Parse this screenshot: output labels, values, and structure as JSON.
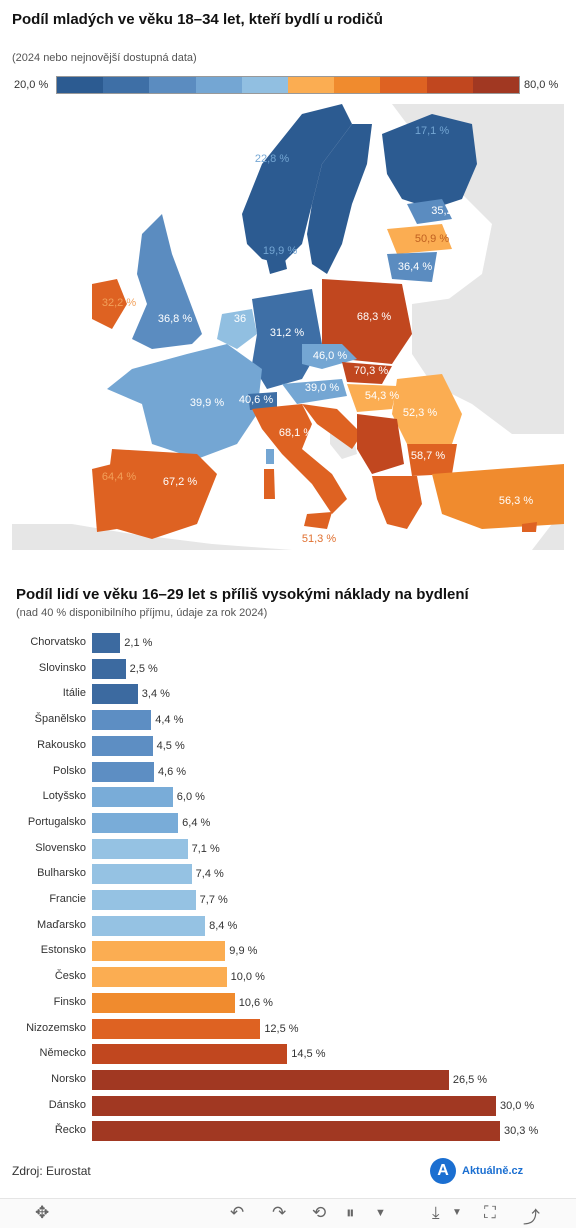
{
  "map_section": {
    "title": "Podíl mladých ve věku 18–34 let, kteří bydlí u rodičů",
    "subtitle": "(2024 nebo nejnovější dostupná data)",
    "legend_min": "20,0 %",
    "legend_max": "80,0 %",
    "legend_colors": [
      "#2c5b91",
      "#3e6fa6",
      "#5b8cc0",
      "#74a6d3",
      "#91bfe1",
      "#fbad52",
      "#f08b2e",
      "#de6222",
      "#c1471f",
      "#a13822"
    ],
    "labels": [
      {
        "text": "17,1 %",
        "color": "#74a6d3"
      },
      {
        "text": "22,8 %",
        "color": "#74a6d3"
      },
      {
        "text": "35,2",
        "color": "#ffffff"
      },
      {
        "text": "50,9 %",
        "color": "#c06020"
      },
      {
        "text": "36,4 %",
        "color": "#ffffff"
      },
      {
        "text": "19,9 %",
        "color": "#74a6d3"
      },
      {
        "text": "36,8 %",
        "color": "#ffffff"
      },
      {
        "text": "32,2 %",
        "color": "#f2a05a"
      },
      {
        "text": "36",
        "color": "#ffffff"
      },
      {
        "text": "31,2 %",
        "color": "#ffffff"
      },
      {
        "text": "68,3 %",
        "color": "#ffffff"
      },
      {
        "text": "46,0 %",
        "color": "#ffffff"
      },
      {
        "text": "70,3 %",
        "color": "#ffffff"
      },
      {
        "text": "39,0 %",
        "color": "#ffffff"
      },
      {
        "text": "54,3 %",
        "color": "#ffffff"
      },
      {
        "text": "52,3 %",
        "color": "#ffffff"
      },
      {
        "text": "39,9 %",
        "color": "#ffffff"
      },
      {
        "text": "40,6 %",
        "color": "#ffffff"
      },
      {
        "text": "68,1 %",
        "color": "#ffffff"
      },
      {
        "text": "58,7 %",
        "color": "#ffffff"
      },
      {
        "text": "67,2 %",
        "color": "#ffffff"
      },
      {
        "text": "64,4 %",
        "color": "#f2a05a"
      },
      {
        "text": "56,3 %",
        "color": "#ffffff"
      },
      {
        "text": "51,3 %",
        "color": "#e07030"
      }
    ]
  },
  "bar_section": {
    "title": "Podíl lidí ve věku 16–29 let s příliš vysokými náklady na bydlení",
    "subtitle": "(nad 40 % disponibilního příjmu, údaje za rok 2024)"
  },
  "chart_data": [
    {
      "type": "bar",
      "orientation": "horizontal",
      "title": "Podíl lidí ve věku 16–29 let s příliš vysokými náklady na bydlení",
      "subtitle": "(nad 40 % disponibilního příjmu, údaje za rok 2024)",
      "categories": [
        "Chorvatsko",
        "Slovinsko",
        "Itálie",
        "Španělsko",
        "Rakousko",
        "Polsko",
        "Lotyšsko",
        "Portugalsko",
        "Slovensko",
        "Bulharsko",
        "Francie",
        "Maďarsko",
        "Estonsko",
        "Česko",
        "Finsko",
        "Nizozemsko",
        "Německo",
        "Norsko",
        "Dánsko",
        "Řecko"
      ],
      "values": [
        2.1,
        2.5,
        3.4,
        4.4,
        4.5,
        4.6,
        6.0,
        6.4,
        7.1,
        7.4,
        7.7,
        8.4,
        9.9,
        10.0,
        10.6,
        12.5,
        14.5,
        26.5,
        30.0,
        30.3
      ],
      "value_labels": [
        "2,1 %",
        "2,5 %",
        "3,4 %",
        "4,4 %",
        "4,5 %",
        "4,6 %",
        "6,0 %",
        "6,4 %",
        "7,1 %",
        "7,4 %",
        "7,7 %",
        "8,4 %",
        "9,9 %",
        "10,0 %",
        "10,6 %",
        "12,5 %",
        "14,5 %",
        "26,5 %",
        "30,0 %",
        "30,3 %"
      ],
      "colors": [
        "#3c6aa0",
        "#3c6aa0",
        "#3c6aa0",
        "#5d8ec3",
        "#5d8ec3",
        "#5d8ec3",
        "#79acd8",
        "#79acd8",
        "#95c2e3",
        "#95c2e3",
        "#95c2e3",
        "#95c2e3",
        "#fbad52",
        "#fbad52",
        "#f08b2e",
        "#de6222",
        "#c1471f",
        "#a13822",
        "#a13822",
        "#a13822"
      ],
      "xlim": [
        0,
        30.3
      ]
    },
    {
      "type": "map",
      "title": "Podíl mladých ve věku 18–34 let, kteří bydlí u rodičů",
      "subtitle": "(2024 nebo nejnovější dostupná data)",
      "scale": {
        "min": 20.0,
        "max": 80.0,
        "min_label": "20,0 %",
        "max_label": "80,0 %"
      },
      "values": [
        "17,1 %",
        "22,8 %",
        "35,2",
        "50,9 %",
        "36,4 %",
        "19,9 %",
        "36,8 %",
        "32,2 %",
        "36",
        "31,2 %",
        "68,3 %",
        "46,0 %",
        "70,3 %",
        "39,0 %",
        "54,3 %",
        "52,3 %",
        "39,9 %",
        "40,6 %",
        "68,1 %",
        "58,7 %",
        "67,2 %",
        "64,4 %",
        "56,3 %",
        "51,3 %"
      ]
    }
  ],
  "footer": {
    "source": "Zdroj: Eurostat",
    "logo_letter": "A",
    "logo_text": "Aktuálně.cz"
  },
  "toolbar": {
    "icons": [
      "move-icon",
      "undo-icon",
      "redo-icon",
      "revert-icon",
      "pause-icon",
      "dropdown-icon",
      "download-icon",
      "fullscreen-icon",
      "share-icon"
    ]
  }
}
